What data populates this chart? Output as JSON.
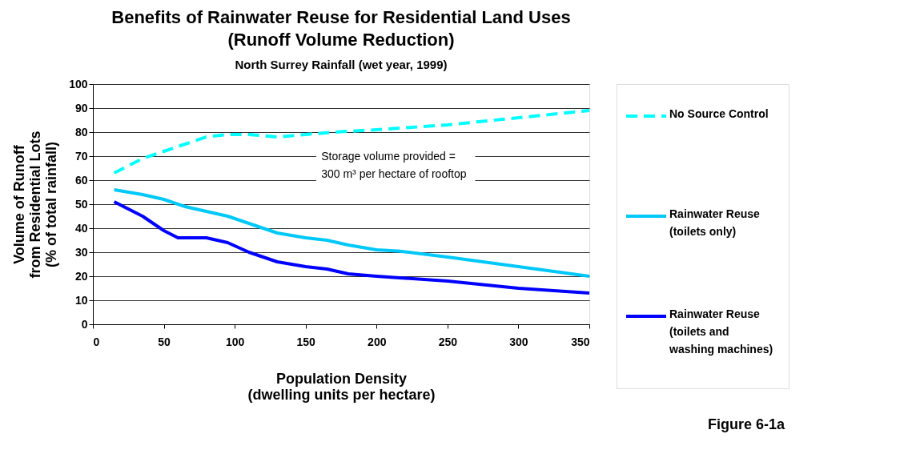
{
  "chart_data": {
    "type": "line",
    "title": "Benefits of Rainwater Reuse for Residential Land Uses\n(Runoff Volume Reduction)",
    "subtitle": "North Surrey Rainfall (wet year, 1999)",
    "xlabel": "Population Density\n(dwelling units per hectare)",
    "ylabel": "Volume of Runoff\nfrom Residential Lots\n(% of total rainfall)",
    "xlim": [
      0,
      350
    ],
    "xticks": [
      0,
      50,
      100,
      150,
      200,
      250,
      300,
      350
    ],
    "ylim": [
      0,
      100
    ],
    "yticks": [
      0,
      10,
      20,
      30,
      40,
      50,
      60,
      70,
      80,
      90,
      100
    ],
    "grid": "y",
    "legend": "right",
    "marker": "none",
    "annotations": [
      "Storage volume provided =\n300 m³ per hectare of rooftop",
      "Figure 6-1a"
    ],
    "series": [
      {
        "name": "No Source Control",
        "color": "#00ffff",
        "line_style": "dashed",
        "x": [
          15,
          35,
          50,
          65,
          80,
          95,
          110,
          130,
          150,
          170,
          200,
          250,
          300,
          350
        ],
        "values": [
          63,
          69,
          72,
          75,
          78,
          79,
          79,
          78,
          79,
          80,
          81,
          83,
          86,
          89
        ]
      },
      {
        "name": "Rainwater Reuse\n(toilets only)",
        "color": "#00c8f8",
        "line_style": "solid",
        "x": [
          15,
          35,
          50,
          65,
          80,
          95,
          110,
          130,
          150,
          165,
          180,
          200,
          215,
          250,
          300,
          350
        ],
        "values": [
          56,
          54,
          52,
          49,
          47,
          45,
          42,
          38,
          36,
          35,
          33,
          31,
          30.5,
          28,
          24,
          20
        ]
      },
      {
        "name": "Rainwater Reuse\n(toilets and\nwashing machines)",
        "color": "#0000ff",
        "line_style": "solid",
        "x": [
          15,
          35,
          50,
          60,
          80,
          95,
          110,
          130,
          150,
          165,
          180,
          200,
          250,
          300,
          350
        ],
        "values": [
          51,
          45,
          39,
          36,
          36,
          34,
          30,
          26,
          24,
          23,
          21,
          20,
          18,
          15,
          13
        ]
      }
    ]
  }
}
